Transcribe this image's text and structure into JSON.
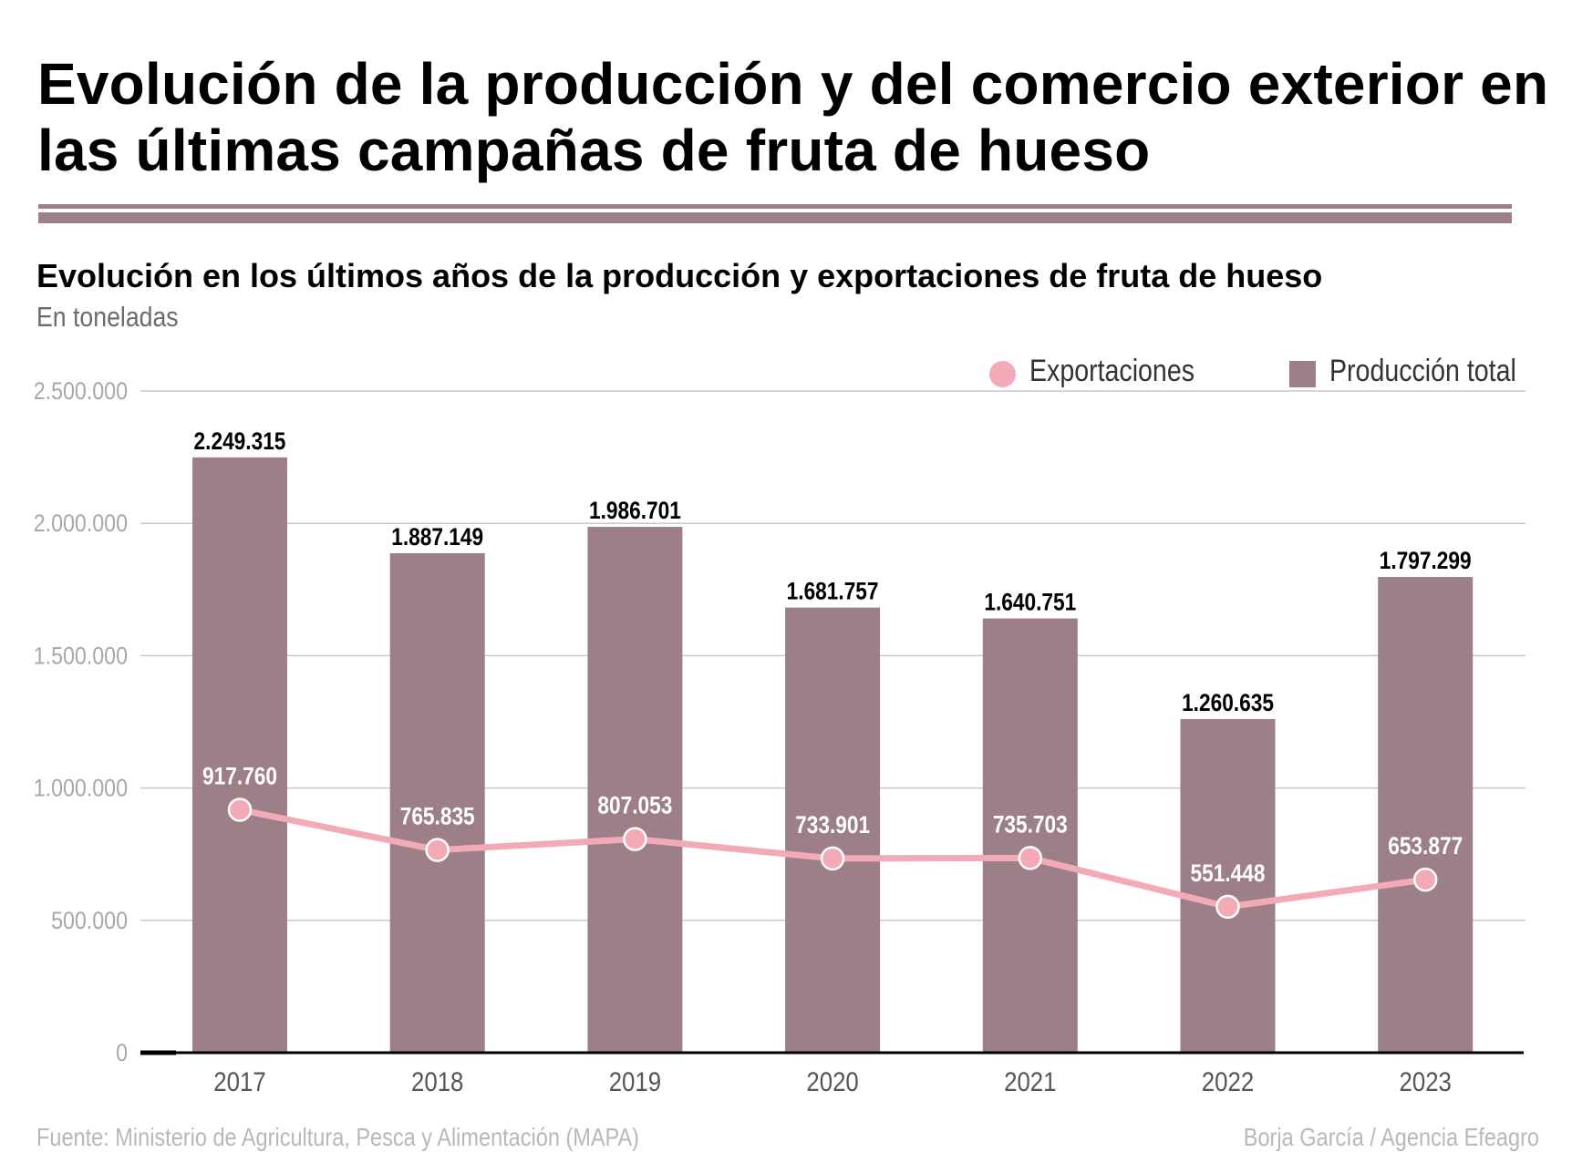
{
  "header": {
    "title": "Evolución de la producción y del comercio exterior en las últimas campañas de fruta de hueso"
  },
  "chart_header": {
    "subtitle": "Evolución en los últimos años de la producción y exportaciones de fruta de hueso",
    "units": "En toneladas"
  },
  "legend": {
    "items": [
      {
        "label": "Exportaciones",
        "marker": "circle",
        "color": "#f2abb6"
      },
      {
        "label": "Producción total",
        "marker": "square",
        "color": "#9c7f87"
      }
    ]
  },
  "footer": {
    "source": "Fuente: Ministerio de Agricultura, Pesca y Alimentación (MAPA)",
    "credit": "Borja García / Agencia Efeagro"
  },
  "colors": {
    "bars": "#9c7f87",
    "line": "#f2abb6",
    "grid": "#c8c8c8",
    "axis": "#000000",
    "tick_label": "#a8a8a8",
    "year_label": "#555555",
    "bar_label": "#000000",
    "point_label": "#ffffff"
  },
  "chart_data": {
    "type": "bar",
    "title": "Evolución en los últimos años de la producción y exportaciones de fruta de hueso",
    "subtitle": "En toneladas",
    "xlabel": "",
    "ylabel": "",
    "categories": [
      "2017",
      "2018",
      "2019",
      "2020",
      "2021",
      "2022",
      "2023"
    ],
    "series": [
      {
        "name": "Producción total",
        "type": "bar",
        "values": [
          2249315,
          1887149,
          1986701,
          1681757,
          1640751,
          1260635,
          1797299
        ],
        "labels": [
          "2.249.315",
          "1.887.149",
          "1.986.701",
          "1.681.757",
          "1.640.751",
          "1.260.635",
          "1.797.299"
        ]
      },
      {
        "name": "Exportaciones",
        "type": "line",
        "values": [
          917760,
          765835,
          807053,
          733901,
          735703,
          551448,
          653877
        ],
        "labels": [
          "917.760",
          "765.835",
          "807.053",
          "733.901",
          "735.703",
          "551.448",
          "653.877"
        ]
      }
    ],
    "ylim": [
      0,
      2500000
    ],
    "yticks": [
      0,
      500000,
      1000000,
      1500000,
      2000000,
      2500000
    ],
    "ytick_labels": [
      "0",
      "500.000",
      "1.000.000",
      "1.500.000",
      "2.000.000",
      "2.500.000"
    ],
    "grid": true,
    "legend_position": "top-right"
  }
}
